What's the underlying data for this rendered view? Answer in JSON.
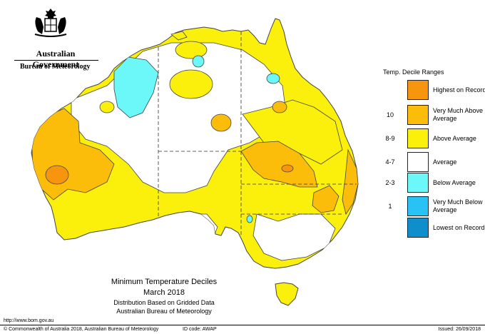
{
  "header": {
    "gov_name": "Australian Government",
    "bureau_name": "Bureau of Meteorology"
  },
  "map": {
    "title": "Minimum Temperature Deciles",
    "period": "March 2018",
    "subtitle1": "Distribution Based on Gridded Data",
    "subtitle2": "Australian Bureau of Meteorology"
  },
  "legend": {
    "title": "Temp. Decile Ranges",
    "items": [
      {
        "num": "",
        "label": "Highest on Record",
        "color": "#f7960e"
      },
      {
        "num": "10",
        "label": "Very Much Above Average",
        "color": "#fbbd0a"
      },
      {
        "num": "8-9",
        "label": "Above Average",
        "color": "#fbef0c"
      },
      {
        "num": "4-7",
        "label": "Average",
        "color": "#ffffff"
      },
      {
        "num": "2-3",
        "label": "Below Average",
        "color": "#6cf7f9"
      },
      {
        "num": "1",
        "label": "Very Much Below Average",
        "color": "#29c2f5"
      },
      {
        "num": "",
        "label": "Lowest on Record",
        "color": "#0e8fcc"
      }
    ]
  },
  "footer": {
    "url": "http://www.bom.gov.au",
    "copyright": "© Commonwealth of Australia 2018, Australian Bureau of Meteorology",
    "id_code": "ID code: AWAP",
    "issued": "Issued: 26/09/2018"
  }
}
